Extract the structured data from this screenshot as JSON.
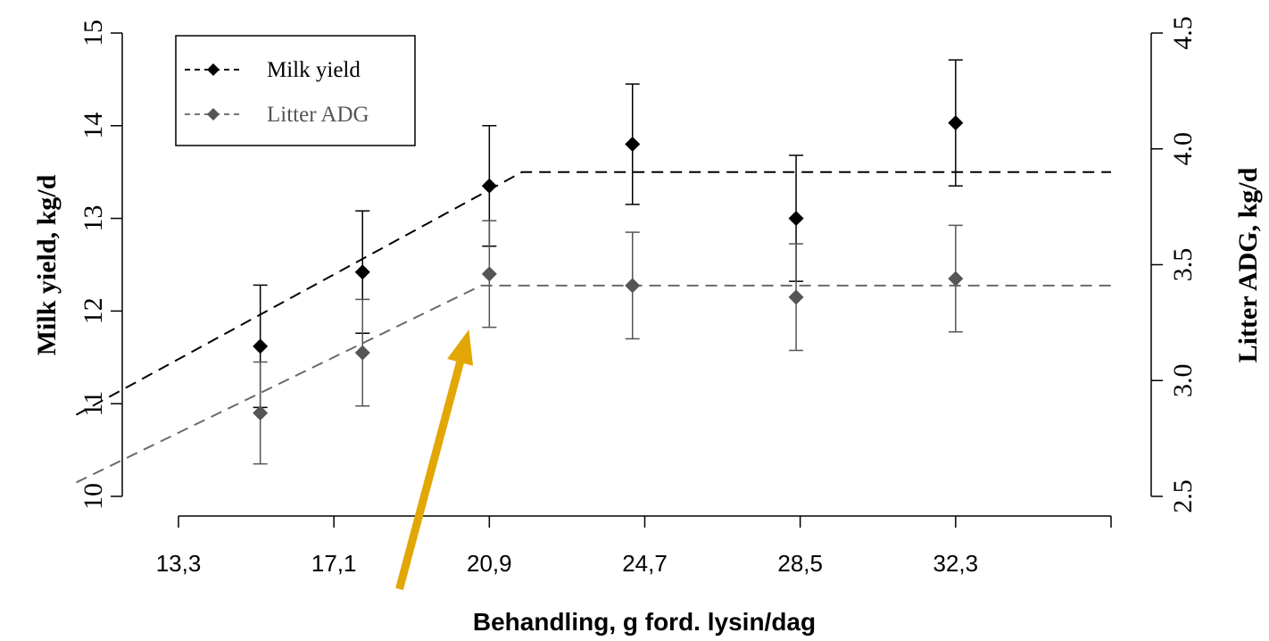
{
  "chart_data": {
    "type": "scatter",
    "xlabel": "Behandling, g ford. lysin/dag",
    "ylabel": "Milk yield, kg/d",
    "y2label": "Litter ADG, kg/d",
    "xlim": [
      13.3,
      36.1
    ],
    "ylim": [
      10,
      15
    ],
    "y2lim": [
      2.5,
      4.5
    ],
    "x_ticks": [
      "13,3",
      "17,1",
      "20,9",
      "24,7",
      "28,5",
      "32,3"
    ],
    "y_ticks": [
      "10",
      "11",
      "12",
      "13",
      "14",
      "15"
    ],
    "y2_ticks": [
      "2.5",
      "3.0",
      "3.5",
      "4.0",
      "4.5"
    ],
    "grid": false,
    "legend_position": "top-left",
    "series": [
      {
        "name": "Milk yield",
        "axis": "left",
        "color": "#000000",
        "x": [
          15.3,
          17.8,
          20.9,
          24.4,
          28.4,
          32.3
        ],
        "y": [
          11.62,
          12.42,
          13.35,
          13.8,
          13.0,
          14.03
        ],
        "err": [
          0.66,
          0.66,
          0.65,
          0.65,
          0.68,
          0.68
        ],
        "fit": {
          "x": [
            10.8,
            21.7,
            36.1
          ],
          "y": [
            10.88,
            13.5,
            13.5
          ]
        }
      },
      {
        "name": "Litter ADG",
        "axis": "right",
        "color": "#555555",
        "x": [
          15.3,
          17.8,
          20.9,
          24.4,
          28.4,
          32.3
        ],
        "y": [
          2.86,
          3.12,
          3.46,
          3.41,
          3.36,
          3.44
        ],
        "err": [
          0.22,
          0.23,
          0.23,
          0.23,
          0.23,
          0.23
        ],
        "fit": {
          "x": [
            10.8,
            20.7,
            36.1
          ],
          "y": [
            2.56,
            3.41,
            3.41
          ]
        }
      }
    ],
    "annotation": {
      "type": "arrow",
      "color": "#E2A705",
      "from": [
        18.7,
        9.0
      ],
      "to": [
        20.4,
        11.8
      ]
    }
  }
}
